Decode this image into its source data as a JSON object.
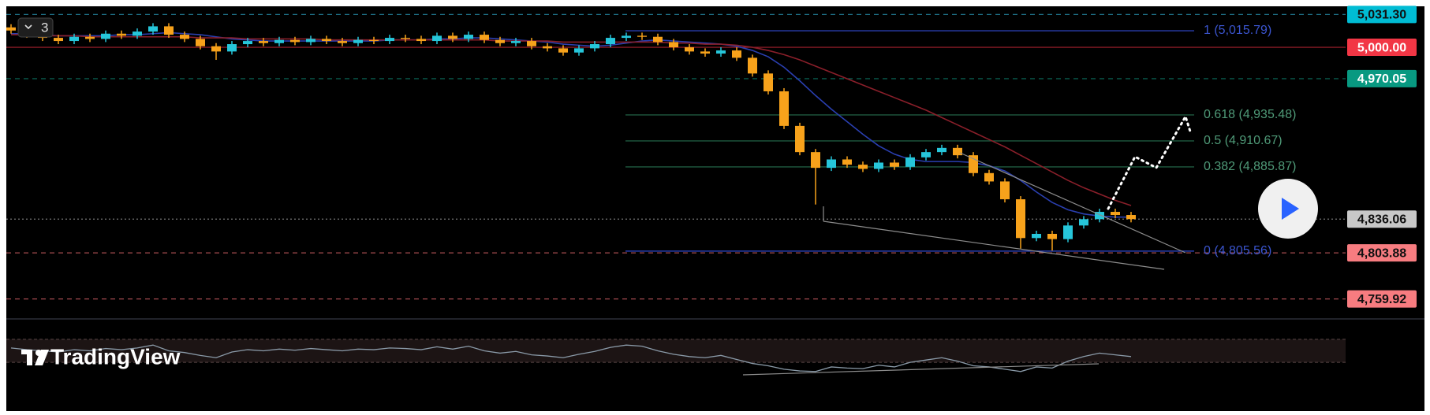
{
  "chart_data": {
    "type": "candlestick",
    "badge": "3",
    "logo": "TradingView",
    "bull_color": "#26c6da",
    "bear_color": "#f7a21b",
    "ylim": [
      4741.6,
      5037.6
    ],
    "open": [
      5019,
      5016,
      5012,
      5009,
      5006,
      5010,
      5008,
      5013,
      5011,
      5015,
      5020,
      5012,
      5008,
      5001,
      4996,
      5003,
      5006,
      5004,
      5007,
      5005,
      5008,
      5006,
      5004,
      5007,
      5006,
      5009,
      5008,
      5006,
      5011,
      5008,
      5012,
      5007,
      5004,
      5006,
      5001,
      4999,
      4995,
      4999,
      5003,
      5009,
      5011,
      5010,
      5005,
      5000,
      4996,
      4994,
      4997,
      4990,
      4975,
      4958,
      4925,
      4900,
      4885,
      4893,
      4888,
      4884,
      4890,
      4886,
      4895,
      4900,
      4904,
      4897,
      4880,
      4872,
      4855,
      4818,
      4822,
      4817,
      4830,
      4836,
      4843,
      4840
    ],
    "high": [
      5022,
      5019,
      5015,
      5012,
      5013,
      5013,
      5016,
      5016,
      5018,
      5023,
      5023,
      5015,
      5011,
      5004,
      5006,
      5009,
      5009,
      5010,
      5010,
      5011,
      5011,
      5009,
      5010,
      5010,
      5012,
      5012,
      5011,
      5014,
      5014,
      5015,
      5015,
      5010,
      5009,
      5009,
      5004,
      5002,
      5002,
      5006,
      5012,
      5014,
      5014,
      5013,
      5008,
      5003,
      4999,
      5000,
      5000,
      4993,
      4978,
      4961,
      4928,
      4903,
      4896,
      4896,
      4891,
      4893,
      4893,
      4898,
      4903,
      4907,
      4907,
      4900,
      4883,
      4875,
      4858,
      4825,
      4825,
      4833,
      4839,
      4846,
      4846,
      4843
    ],
    "low": [
      5013,
      5009,
      5006,
      5003,
      5003,
      5005,
      5005,
      5008,
      5008,
      5012,
      5009,
      5005,
      4998,
      4988,
      4993,
      5000,
      5001,
      5001,
      5002,
      5002,
      5003,
      5001,
      5001,
      5003,
      5003,
      5005,
      5003,
      5003,
      5005,
      5005,
      5004,
      5001,
      5001,
      4998,
      4996,
      4992,
      4992,
      4996,
      5000,
      5006,
      5007,
      5002,
      4997,
      4993,
      4991,
      4991,
      4987,
      4972,
      4955,
      4922,
      4897,
      4850,
      4882,
      4885,
      4881,
      4881,
      4883,
      4883,
      4892,
      4897,
      4894,
      4877,
      4869,
      4852,
      4808,
      4815,
      4806,
      4814,
      4827,
      4833,
      4837,
      4833
    ],
    "close": [
      5016,
      5012,
      5009,
      5006,
      5010,
      5008,
      5013,
      5011,
      5015,
      5020,
      5012,
      5008,
      5001,
      4996,
      5003,
      5006,
      5004,
      5007,
      5005,
      5008,
      5006,
      5004,
      5007,
      5006,
      5009,
      5008,
      5006,
      5011,
      5008,
      5012,
      5007,
      5004,
      5006,
      5001,
      4999,
      4995,
      4999,
      5003,
      5009,
      5011,
      5010,
      5005,
      5000,
      4996,
      4994,
      4997,
      4990,
      4975,
      4958,
      4925,
      4900,
      4885,
      4893,
      4888,
      4884,
      4890,
      4886,
      4895,
      4900,
      4904,
      4897,
      4880,
      4872,
      4855,
      4818,
      4822,
      4817,
      4830,
      4836,
      4843,
      4840,
      4836.06
    ],
    "series": [
      {
        "color": "#2a3fb0",
        "values": [
          5013,
          5013,
          5012,
          5011,
          5011,
          5011,
          5011,
          5012,
          5012,
          5013,
          5014,
          5013,
          5012,
          5010,
          5008,
          5007,
          5006,
          5006,
          5006,
          5006,
          5006,
          5006,
          5006,
          5006,
          5007,
          5007,
          5007,
          5008,
          5008,
          5009,
          5009,
          5008,
          5007,
          5006,
          5005,
          5003,
          5002,
          5001,
          5002,
          5004,
          5006,
          5007,
          5006,
          5005,
          5004,
          5003,
          5001,
          4997,
          4991,
          4981,
          4968,
          4954,
          4941,
          4929,
          4917,
          4906,
          4898,
          4893,
          4891,
          4891,
          4891,
          4890,
          4887,
          4882,
          4873,
          4862,
          4852,
          4845,
          4841,
          4839,
          4838,
          4838
        ]
      },
      {
        "color": "#8a1f2a",
        "values": [
          5012,
          5012,
          5011,
          5011,
          5011,
          5010,
          5010,
          5010,
          5010,
          5010,
          5010,
          5010,
          5009,
          5009,
          5009,
          5008,
          5008,
          5008,
          5008,
          5008,
          5007,
          5007,
          5007,
          5007,
          5007,
          5007,
          5007,
          5007,
          5007,
          5007,
          5007,
          5006,
          5006,
          5006,
          5006,
          5005,
          5005,
          5005,
          5005,
          5005,
          5005,
          5005,
          5004,
          5004,
          5003,
          5003,
          5002,
          5000,
          4997,
          4993,
          4988,
          4982,
          4976,
          4970,
          4964,
          4958,
          4952,
          4946,
          4940,
          4933,
          4926,
          4919,
          4912,
          4905,
          4897,
          4889,
          4881,
          4873,
          4866,
          4860,
          4854,
          4849
        ]
      }
    ],
    "fib_levels": [
      {
        "value": 5015.79,
        "label": "1 (5,015.79)",
        "color": "#2a3fb0"
      },
      {
        "value": 4935.48,
        "label": "0.618 (4,935.48)",
        "color": "#1f5a40"
      },
      {
        "value": 4910.67,
        "label": "0.5 (4,910.67)",
        "color": "#1f5a40"
      },
      {
        "value": 4885.87,
        "label": "0.382 (4,885.87)",
        "color": "#1f5a40"
      },
      {
        "value": 4805.56,
        "label": "0 (4,805.56)",
        "color": "#2a3fb0"
      }
    ],
    "price_labels": [
      {
        "value": 5031.3,
        "label": "5,031.30",
        "color": "#00bcd4",
        "text_color": "#111",
        "line_color": "#1e6f86",
        "line_style": "dashed"
      },
      {
        "value": 5000,
        "label": "5,000.00",
        "color": "#f23645",
        "text_color": "#fff",
        "line_color": "#a3212c",
        "line_style": "solid"
      },
      {
        "value": 4970.05,
        "label": "4,970.05",
        "color": "#089981",
        "text_color": "#fff",
        "line_color": "#0b6b5b",
        "line_style": "dashed"
      },
      {
        "value": 4836.06,
        "label": "4,836.06",
        "color": "#c8c8c8",
        "text_color": "#111",
        "line_color": "#777",
        "line_style": "dotted"
      },
      {
        "value": 4803.88,
        "label": "4,803.88",
        "color": "#f77c80",
        "text_color": "#111",
        "line_color": "#a34a4e",
        "line_style": "dashed"
      },
      {
        "value": 4759.92,
        "label": "4,759.92",
        "color": "#f77c80",
        "text_color": "#111",
        "line_color": "#a34a4e",
        "line_style": "dashed"
      }
    ],
    "rsi": {
      "color": "#8a9aa8",
      "ylim": [
        0,
        100
      ],
      "band": [
        30,
        70
      ],
      "values": [
        55,
        52,
        50,
        48,
        52,
        50,
        54,
        52,
        55,
        60,
        50,
        47,
        42,
        38,
        48,
        52,
        50,
        53,
        51,
        54,
        52,
        50,
        53,
        52,
        55,
        54,
        52,
        57,
        53,
        58,
        50,
        46,
        49,
        43,
        41,
        38,
        44,
        49,
        56,
        60,
        58,
        50,
        44,
        40,
        38,
        42,
        35,
        28,
        24,
        18,
        15,
        14,
        22,
        20,
        19,
        25,
        22,
        30,
        34,
        38,
        32,
        24,
        22,
        18,
        14,
        22,
        20,
        32,
        40,
        46,
        43,
        40
      ]
    }
  }
}
